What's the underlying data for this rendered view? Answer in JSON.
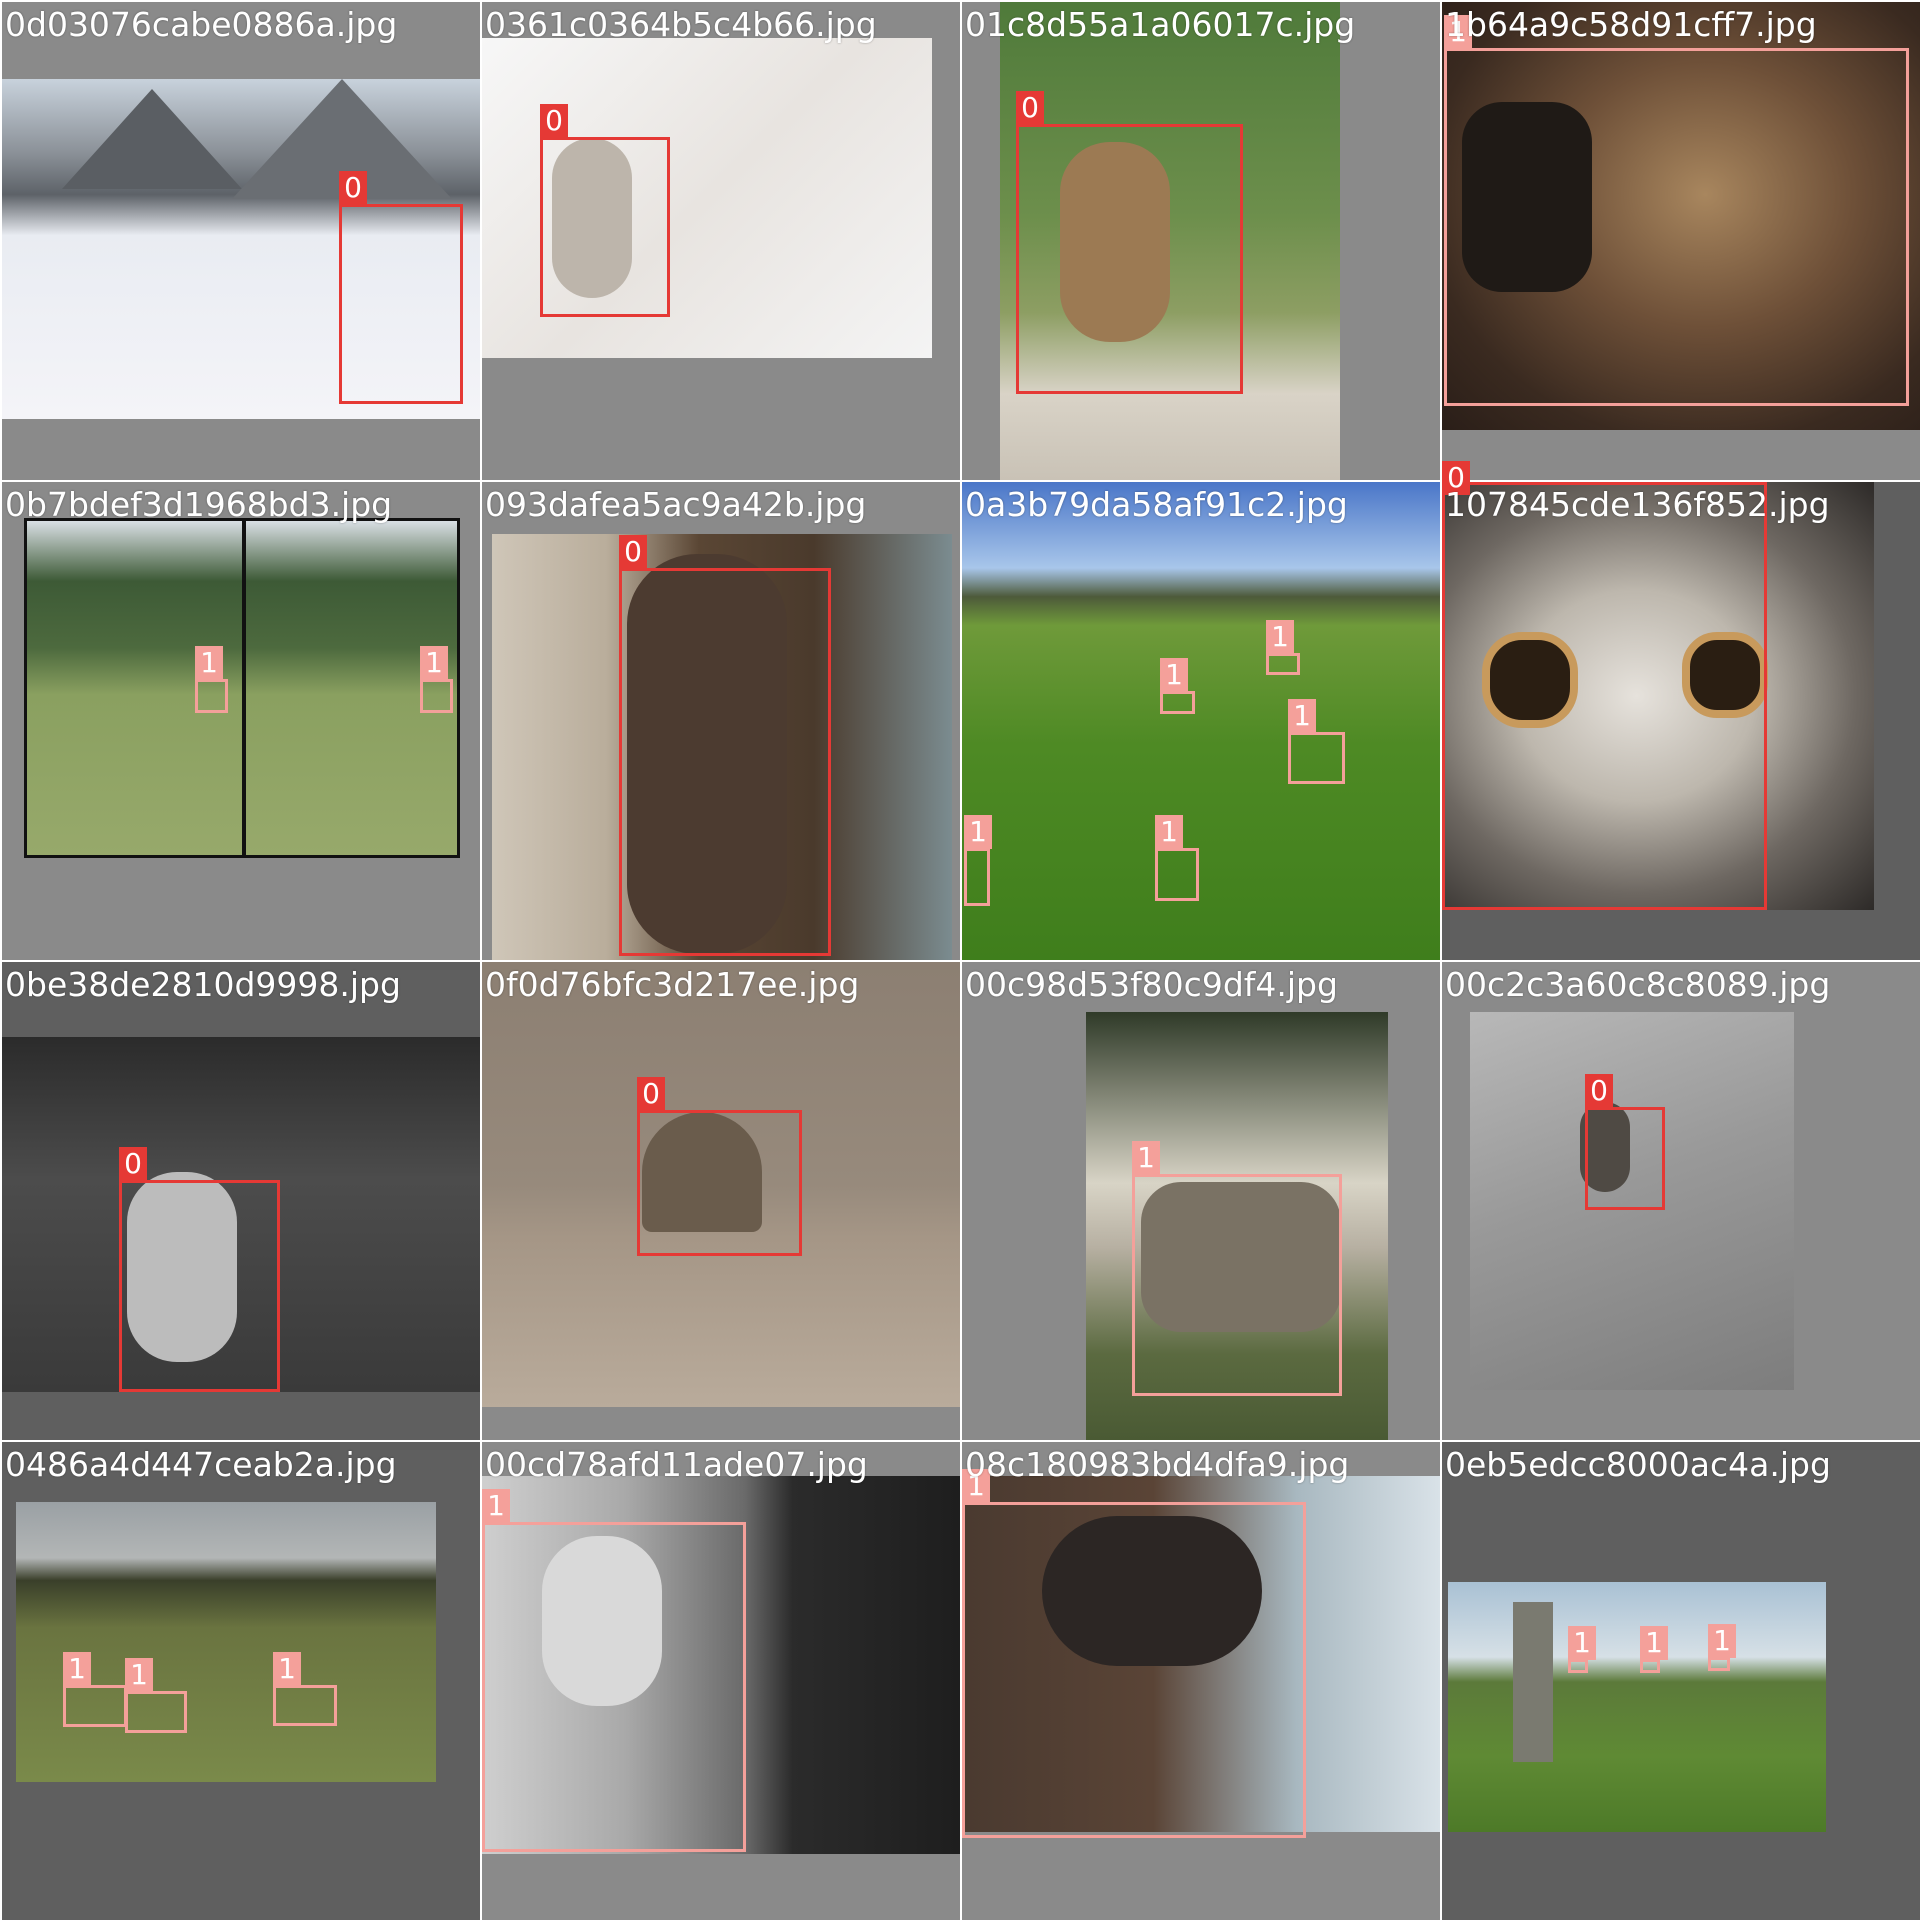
{
  "class_colors": {
    "0": "#e53935",
    "1": "#f4a09a"
  },
  "tiles": [
    {
      "filename": "0d03076cabe0886a.jpg",
      "scene": "snowy mountain render with owl",
      "boxes": [
        {
          "label": "0"
        }
      ]
    },
    {
      "filename": "0361c0364b5c4b66.jpg",
      "scene": "owl on snowy branches",
      "boxes": [
        {
          "label": "0"
        }
      ]
    },
    {
      "filename": "01c8d55a1a06017c.jpg",
      "scene": "burrowing owl in grass",
      "boxes": [
        {
          "label": "0"
        }
      ]
    },
    {
      "filename": "1b64a9c58d91cff7.jpg",
      "scene": "goat in tub",
      "boxes": [
        {
          "label": "1"
        }
      ]
    },
    {
      "filename": "0b7bdef3d1968bd3.jpg",
      "scene": "stereo pair pasture with sheep",
      "boxes": [
        {
          "label": "1"
        },
        {
          "label": "1"
        }
      ]
    },
    {
      "filename": "093dafea5ac9a42b.jpg",
      "scene": "owl statue on balcony",
      "boxes": [
        {
          "label": "0"
        }
      ]
    },
    {
      "filename": "0a3b79da58af91c2.jpg",
      "scene": "green field with grazing sheep",
      "boxes": [
        {
          "label": "1"
        },
        {
          "label": "1"
        },
        {
          "label": "1"
        },
        {
          "label": "1"
        },
        {
          "label": "1"
        }
      ]
    },
    {
      "filename": "107845cde136f852.jpg",
      "scene": "owl face close-up",
      "boxes": [
        {
          "label": "0"
        }
      ]
    },
    {
      "filename": "0be38de2810d9998.jpg",
      "scene": "monochrome bird painting with barn owl",
      "boxes": [
        {
          "label": "0"
        }
      ]
    },
    {
      "filename": "0f0d76bfc3d217ee.jpg",
      "scene": "owl peeking over sandy ground",
      "boxes": [
        {
          "label": "0"
        }
      ]
    },
    {
      "filename": "00c98d53f80c9df4.jpg",
      "scene": "horned ram by fence",
      "boxes": [
        {
          "label": "1"
        }
      ]
    },
    {
      "filename": "00c2c3a60c8c8089.jpg",
      "scene": "small owl on branch",
      "boxes": [
        {
          "label": "0"
        }
      ]
    },
    {
      "filename": "0486a4d447ceab2a.jpg",
      "scene": "pasture with sheep herd",
      "boxes": [
        {
          "label": "1"
        },
        {
          "label": "1"
        },
        {
          "label": "1"
        }
      ]
    },
    {
      "filename": "00cd78afd11ade07.jpg",
      "scene": "black and white ram portrait",
      "boxes": [
        {
          "label": "1"
        }
      ]
    },
    {
      "filename": "08c180983bd4dfa9.jpg",
      "scene": "brown horned sheep",
      "boxes": [
        {
          "label": "1"
        }
      ]
    },
    {
      "filename": "0eb5edcc8000ac4a.jpg",
      "scene": "celtic cross with fence and field",
      "boxes": [
        {
          "label": "1"
        },
        {
          "label": "1"
        },
        {
          "label": "1"
        }
      ]
    }
  ]
}
